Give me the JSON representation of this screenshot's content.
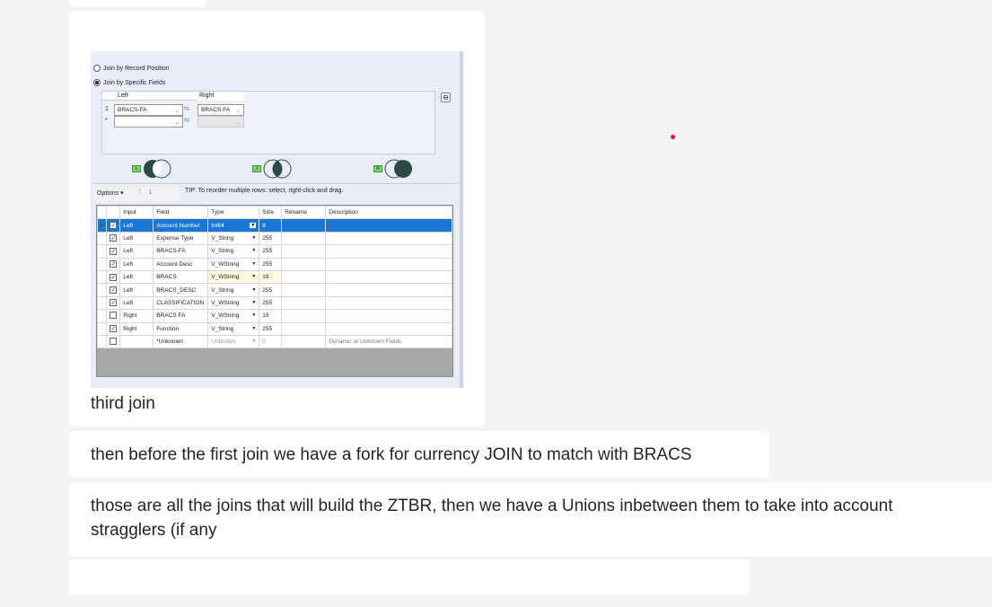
{
  "messages": [
    {
      "caption": "third join"
    },
    {
      "text": "then before the first join we have a fork for currency JOIN to match with BRACS"
    },
    {
      "text": "those are all the joins that will build the ZTBR, then we have a Unions inbetween them to take into account stragglers (if any"
    }
  ],
  "join_config": {
    "radio_record_position": "Join by Record Position",
    "radio_specific_fields": "Join by Specific Fields",
    "selected": "Join by Specific Fields",
    "left_header": "Left",
    "right_header": "Right",
    "rows": [
      {
        "num": "1",
        "left": "BRACS-FA",
        "right": "BRACS FA"
      },
      {
        "num": "*",
        "left": "",
        "right": ""
      }
    ],
    "venn_labels": [
      "L",
      "J",
      "R"
    ],
    "options_label": "Options",
    "tip": "TIP: To reorder multiple rows: select, right-click and drag.",
    "columns": [
      "Input",
      "Field",
      "Type",
      "Size",
      "Rename",
      "Description"
    ],
    "fields": [
      {
        "checked": true,
        "input": "Left",
        "field": "Account Number",
        "type": "Int64",
        "size": "8",
        "rename": "",
        "description": ""
      },
      {
        "checked": true,
        "input": "Left",
        "field": "Expense Type",
        "type": "V_String",
        "size": "255",
        "rename": "",
        "description": ""
      },
      {
        "checked": true,
        "input": "Left",
        "field": "BRACS-FA",
        "type": "V_String",
        "size": "255",
        "rename": "",
        "description": ""
      },
      {
        "checked": true,
        "input": "Left",
        "field": "Account Desc",
        "type": "V_WString",
        "size": "255",
        "rename": "",
        "description": ""
      },
      {
        "checked": true,
        "input": "Left",
        "field": "BRACS",
        "type": "V_WString",
        "size": "19",
        "rename": "",
        "description": ""
      },
      {
        "checked": true,
        "input": "Left",
        "field": "BRACS_DESC",
        "type": "V_String",
        "size": "255",
        "rename": "",
        "description": ""
      },
      {
        "checked": true,
        "input": "Left",
        "field": "CLASSIFICATION",
        "type": "V_WString",
        "size": "255",
        "rename": "",
        "description": ""
      },
      {
        "checked": false,
        "input": "Right",
        "field": "BRACS FA",
        "type": "V_WString",
        "size": "19",
        "rename": "",
        "description": ""
      },
      {
        "checked": true,
        "input": "Right",
        "field": "Function",
        "type": "V_String",
        "size": "255",
        "rename": "",
        "description": ""
      },
      {
        "checked": false,
        "input": "",
        "field": "*Unknown",
        "type": "Unknown",
        "size": "0",
        "rename": "",
        "description": "Dynamic or Unknown Fields"
      }
    ]
  },
  "colors": {
    "selected_row": "#1a78d4",
    "red_dot": "#e81123"
  }
}
